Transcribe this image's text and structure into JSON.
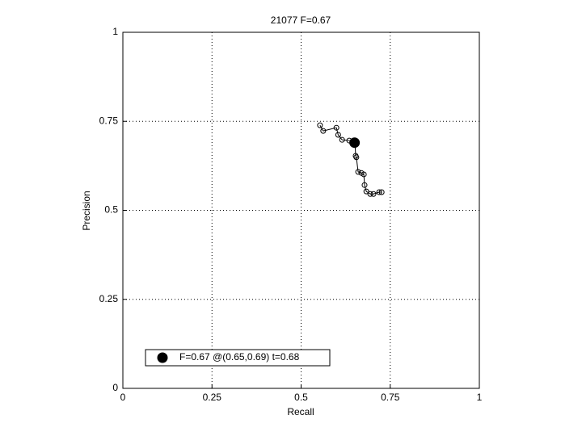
{
  "chart_data": {
    "type": "line",
    "title": "21077 F=0.67",
    "x_label": "Recall",
    "y_label": "Precision",
    "xlim": [
      0,
      1
    ],
    "ylim": [
      0,
      1
    ],
    "xticks": [
      0,
      0.25,
      0.5,
      0.75,
      1
    ],
    "yticks": [
      0,
      0.25,
      0.5,
      0.75,
      1
    ],
    "grid": true,
    "legend": "lower left",
    "series": [
      {
        "color": "#000000",
        "marker": "open",
        "x": [
          0.553,
          0.562,
          0.599,
          0.604,
          0.615,
          0.635,
          0.651,
          0.653,
          0.655,
          0.66,
          0.669,
          0.676,
          0.678,
          0.683,
          0.694,
          0.703,
          0.719,
          0.726
        ],
        "values": [
          0.739,
          0.723,
          0.732,
          0.712,
          0.698,
          0.696,
          0.694,
          0.653,
          0.649,
          0.608,
          0.605,
          0.601,
          0.571,
          0.553,
          0.546,
          0.546,
          0.551,
          0.551
        ]
      },
      {
        "name": "F=0.67 @(0.65,0.69) t=0.68",
        "color": "#000000",
        "marker": "filled",
        "x": [
          0.65
        ],
        "values": [
          0.69
        ]
      }
    ]
  }
}
